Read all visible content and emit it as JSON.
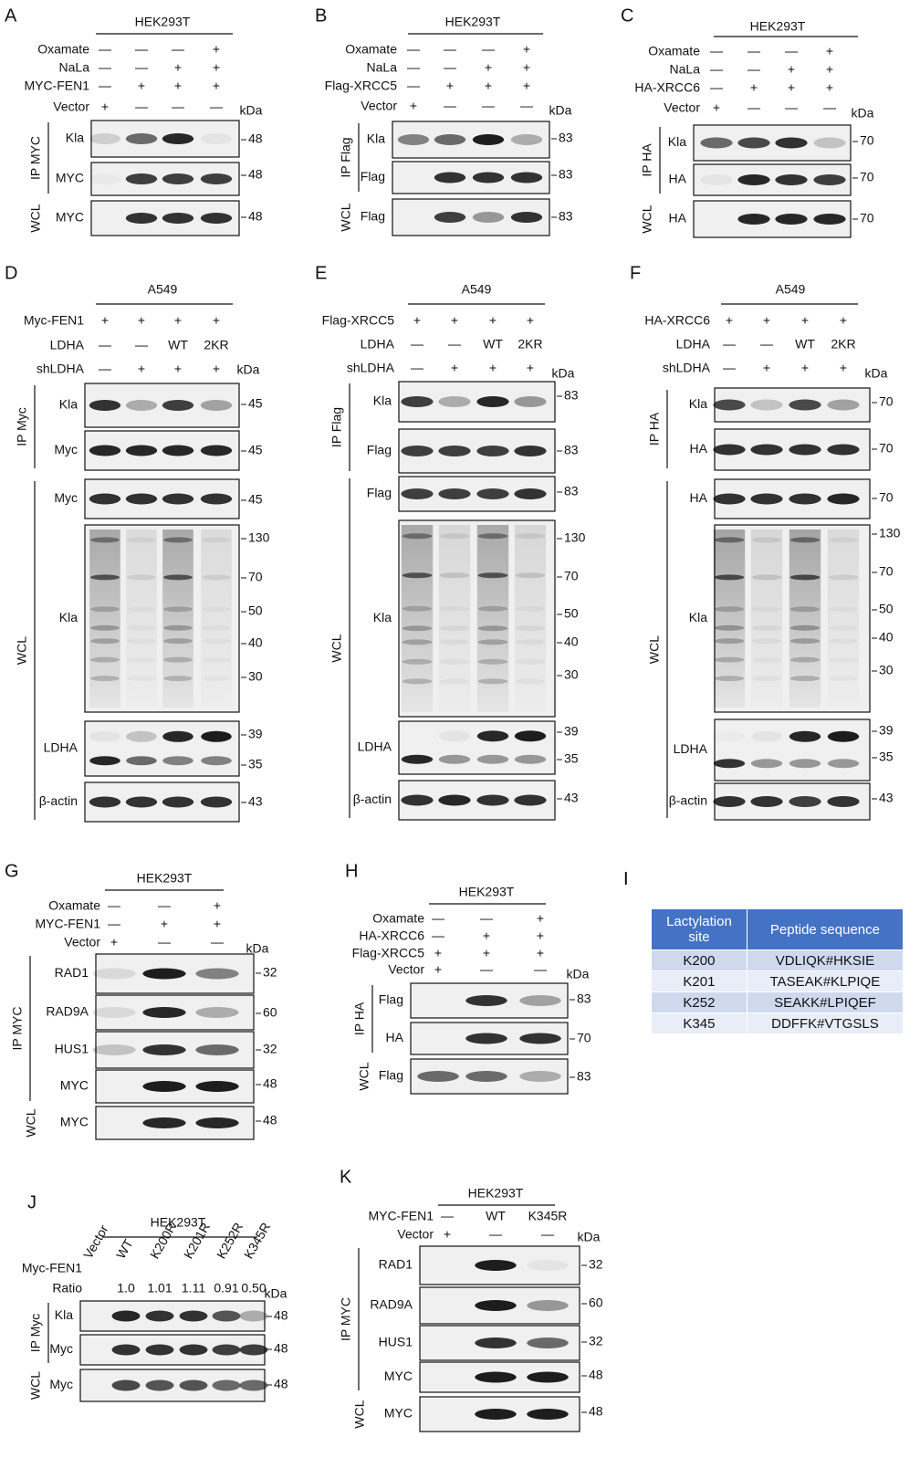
{
  "panels": [
    {
      "letter": "A",
      "cell_line": "HEK293T",
      "conditions": [
        {
          "label": "Oxamate",
          "marks": [
            "—",
            "—",
            "—",
            "+"
          ]
        },
        {
          "label": "NaLa",
          "marks": [
            "—",
            "—",
            "+",
            "+"
          ]
        },
        {
          "label": "MYC-FEN1",
          "marks": [
            "—",
            "+",
            "+",
            "+"
          ]
        },
        {
          "label": "Vector",
          "marks": [
            "+",
            "—",
            "—",
            "—"
          ]
        }
      ],
      "unit": "kDa",
      "blots": [
        {
          "label": "Kla",
          "markers": [
            "48"
          ]
        },
        {
          "label": "MYC",
          "markers": [
            "48"
          ]
        },
        {
          "label": "MYC",
          "markers": [
            "48"
          ]
        }
      ],
      "groups": [
        "IP MYC",
        "WCL"
      ]
    },
    {
      "letter": "B",
      "cell_line": "HEK293T",
      "conditions": [
        {
          "label": "Oxamate",
          "marks": [
            "—",
            "—",
            "—",
            "+"
          ]
        },
        {
          "label": "NaLa",
          "marks": [
            "—",
            "—",
            "+",
            "+"
          ]
        },
        {
          "label": "Flag-XRCC5",
          "marks": [
            "—",
            "+",
            "+",
            "+"
          ]
        },
        {
          "label": "Vector",
          "marks": [
            "+",
            "—",
            "—",
            "—"
          ]
        }
      ],
      "unit": "kDa",
      "blots": [
        {
          "label": "Kla",
          "markers": [
            "83"
          ]
        },
        {
          "label": "Flag",
          "markers": [
            "83"
          ]
        },
        {
          "label": "Flag",
          "markers": [
            "83"
          ]
        }
      ],
      "groups": [
        "IP Flag",
        "WCL"
      ]
    },
    {
      "letter": "C",
      "cell_line": "HEK293T",
      "conditions": [
        {
          "label": "Oxamate",
          "marks": [
            "—",
            "—",
            "—",
            "+"
          ]
        },
        {
          "label": "NaLa",
          "marks": [
            "—",
            "—",
            "+",
            "+"
          ]
        },
        {
          "label": "HA-XRCC6",
          "marks": [
            "—",
            "+",
            "+",
            "+"
          ]
        },
        {
          "label": "Vector",
          "marks": [
            "+",
            "—",
            "—",
            "—"
          ]
        }
      ],
      "unit": "kDa",
      "blots": [
        {
          "label": "Kla",
          "markers": [
            "70"
          ]
        },
        {
          "label": "HA",
          "markers": [
            "70"
          ]
        },
        {
          "label": "HA",
          "markers": [
            "70"
          ]
        }
      ],
      "groups": [
        "IP HA",
        "WCL"
      ]
    },
    {
      "letter": "D",
      "cell_line": "A549",
      "conditions": [
        {
          "label": "Myc-FEN1",
          "marks": [
            "+",
            "+",
            "+",
            "+"
          ]
        },
        {
          "label": "LDHA",
          "marks": [
            "—",
            "—",
            "WT",
            "2KR"
          ]
        },
        {
          "label": "shLDHA",
          "marks": [
            "—",
            "+",
            "+",
            "+"
          ]
        }
      ],
      "unit": "kDa",
      "blots": [
        {
          "label": "Kla",
          "markers": [
            "45"
          ]
        },
        {
          "label": "Myc",
          "markers": [
            "45"
          ]
        },
        {
          "label": "Myc",
          "markers": [
            "45"
          ]
        },
        {
          "label": "Kla",
          "markers": [
            "130",
            "70",
            "50",
            "40",
            "30"
          ]
        },
        {
          "label": "LDHA",
          "markers": [
            "39",
            "35"
          ]
        },
        {
          "label": "β-actin",
          "markers": [
            "43"
          ]
        }
      ],
      "groups": [
        "IP Myc",
        "WCL"
      ]
    },
    {
      "letter": "E",
      "cell_line": "A549",
      "conditions": [
        {
          "label": "Flag-XRCC5",
          "marks": [
            "+",
            "+",
            "+",
            "+"
          ]
        },
        {
          "label": "LDHA",
          "marks": [
            "—",
            "—",
            "WT",
            "2KR"
          ]
        },
        {
          "label": "shLDHA",
          "marks": [
            "—",
            "+",
            "+",
            "+"
          ]
        }
      ],
      "unit": "kDa",
      "blots": [
        {
          "label": "Kla",
          "markers": [
            "83"
          ]
        },
        {
          "label": "Flag",
          "markers": [
            "83"
          ]
        },
        {
          "label": "Flag",
          "markers": [
            "83"
          ]
        },
        {
          "label": "Kla",
          "markers": [
            "130",
            "70",
            "50",
            "40",
            "30"
          ]
        },
        {
          "label": "LDHA",
          "markers": [
            "39",
            "35"
          ]
        },
        {
          "label": "β-actin",
          "markers": [
            "43"
          ]
        }
      ],
      "groups": [
        "IP Flag",
        "WCL"
      ]
    },
    {
      "letter": "F",
      "cell_line": "A549",
      "conditions": [
        {
          "label": "HA-XRCC6",
          "marks": [
            "+",
            "+",
            "+",
            "+"
          ]
        },
        {
          "label": "LDHA",
          "marks": [
            "—",
            "—",
            "WT",
            "2KR"
          ]
        },
        {
          "label": "shLDHA",
          "marks": [
            "—",
            "+",
            "+",
            "+"
          ]
        }
      ],
      "unit": "kDa",
      "blots": [
        {
          "label": "Kla",
          "markers": [
            "70"
          ]
        },
        {
          "label": "HA",
          "markers": [
            "70"
          ]
        },
        {
          "label": "HA",
          "markers": [
            "70"
          ]
        },
        {
          "label": "Kla",
          "markers": [
            "130",
            "70",
            "50",
            "40",
            "30"
          ]
        },
        {
          "label": "LDHA",
          "markers": [
            "39",
            "35"
          ]
        },
        {
          "label": "β-actin",
          "markers": [
            "43"
          ]
        }
      ],
      "groups": [
        "IP HA",
        "WCL"
      ]
    },
    {
      "letter": "G",
      "cell_line": "HEK293T",
      "conditions": [
        {
          "label": "Oxamate",
          "marks": [
            "—",
            "—",
            "+"
          ]
        },
        {
          "label": "MYC-FEN1",
          "marks": [
            "—",
            "+",
            "+"
          ]
        },
        {
          "label": "Vector",
          "marks": [
            "+",
            "—",
            "—"
          ]
        }
      ],
      "unit": "kDa",
      "blots": [
        {
          "label": "RAD1",
          "markers": [
            "32"
          ]
        },
        {
          "label": "RAD9A",
          "markers": [
            "60"
          ]
        },
        {
          "label": "HUS1",
          "markers": [
            "32"
          ]
        },
        {
          "label": "MYC",
          "markers": [
            "48"
          ]
        },
        {
          "label": "MYC",
          "markers": [
            "48"
          ]
        }
      ],
      "groups": [
        "IP MYC",
        "WCL"
      ]
    },
    {
      "letter": "H",
      "cell_line": "HEK293T",
      "conditions": [
        {
          "label": "Oxamate",
          "marks": [
            "—",
            "—",
            "+"
          ]
        },
        {
          "label": "HA-XRCC6",
          "marks": [
            "—",
            "+",
            "+"
          ]
        },
        {
          "label": "Flag-XRCC5",
          "marks": [
            "+",
            "+",
            "+"
          ]
        },
        {
          "label": "Vector",
          "marks": [
            "+",
            "—",
            "—"
          ]
        }
      ],
      "unit": "kDa",
      "blots": [
        {
          "label": "Flag",
          "markers": [
            "83"
          ]
        },
        {
          "label": "HA",
          "markers": [
            "70"
          ]
        },
        {
          "label": "Flag",
          "markers": [
            "83"
          ]
        }
      ],
      "groups": [
        "IP HA",
        "WCL"
      ]
    },
    {
      "letter": "J",
      "cell_line": "HEK293T",
      "lane_labels": [
        "Vector",
        "WT",
        "K200R",
        "K201R",
        "K252R",
        "K345R"
      ],
      "conditions": [
        {
          "label": "Myc-FEN1"
        },
        {
          "label": "Ratio",
          "marks": [
            null,
            "1.0",
            "1.01",
            "1.11",
            "0.91",
            "0.50"
          ]
        }
      ],
      "unit": "kDa",
      "blots": [
        {
          "label": "Kla",
          "markers": [
            "48"
          ]
        },
        {
          "label": "Myc",
          "markers": [
            "48"
          ]
        },
        {
          "label": "Myc",
          "markers": [
            "48"
          ]
        }
      ],
      "groups": [
        "IP Myc",
        "WCL"
      ]
    },
    {
      "letter": "K",
      "cell_line": "HEK293T",
      "conditions": [
        {
          "label": "MYC-FEN1",
          "marks": [
            "—",
            "WT",
            "K345R"
          ]
        },
        {
          "label": "Vector",
          "marks": [
            "+",
            "—",
            "—"
          ]
        }
      ],
      "unit": "kDa",
      "blots": [
        {
          "label": "RAD1",
          "markers": [
            "32"
          ]
        },
        {
          "label": "RAD9A",
          "markers": [
            "60"
          ]
        },
        {
          "label": "HUS1",
          "markers": [
            "32"
          ]
        },
        {
          "label": "MYC",
          "markers": [
            "48"
          ]
        },
        {
          "label": "MYC",
          "markers": [
            "48"
          ]
        }
      ],
      "groups": [
        "IP MYC",
        "WCL"
      ]
    }
  ],
  "table": {
    "letter": "I",
    "header": [
      "Lactylation site",
      "Peptide sequence"
    ],
    "rows": [
      [
        "K200",
        "VDLIQK#HKSIE"
      ],
      [
        "K201",
        "TASEAK#KLPIQE"
      ],
      [
        "K252",
        "SEAKK#LPIQEF"
      ],
      [
        "K345",
        "DDFFK#VTGSLS"
      ]
    ]
  }
}
